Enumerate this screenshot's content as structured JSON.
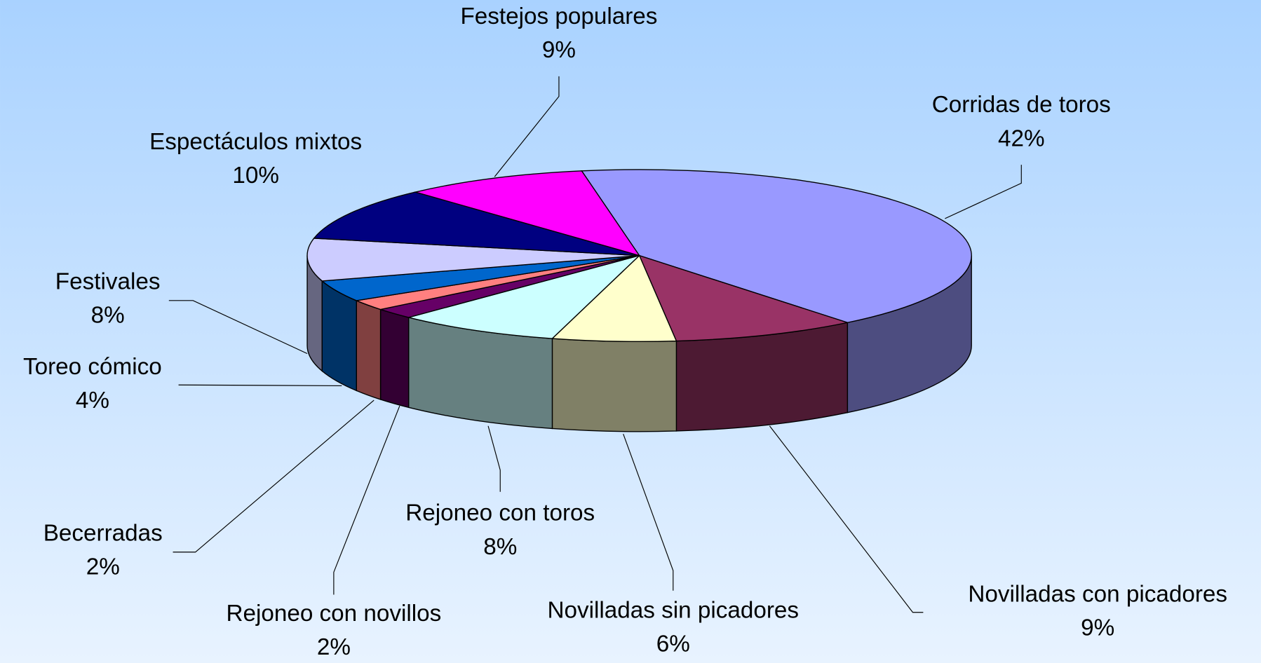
{
  "chart_data": {
    "type": "pie3d",
    "categories": [
      "Corridas de toros",
      "Novilladas con picadores",
      "Novilladas sin picadores",
      "Rejoneo con toros",
      "Rejoneo con novillos",
      "Becerradas",
      "Toreo cómico",
      "Festivales",
      "Espectáculos mixtos",
      "Festejos populares"
    ],
    "values": [
      42,
      9,
      6,
      8,
      2,
      2,
      4,
      8,
      10,
      9
    ],
    "value_labels": [
      "42%",
      "9%",
      "6%",
      "8%",
      "2%",
      "2%",
      "4%",
      "8%",
      "10%",
      "9%"
    ],
    "colors": [
      "#9999ff",
      "#993366",
      "#ffffcc",
      "#ccffff",
      "#660066",
      "#ff8080",
      "#0066cc",
      "#ccccff",
      "#000080",
      "#ff00ff"
    ]
  }
}
